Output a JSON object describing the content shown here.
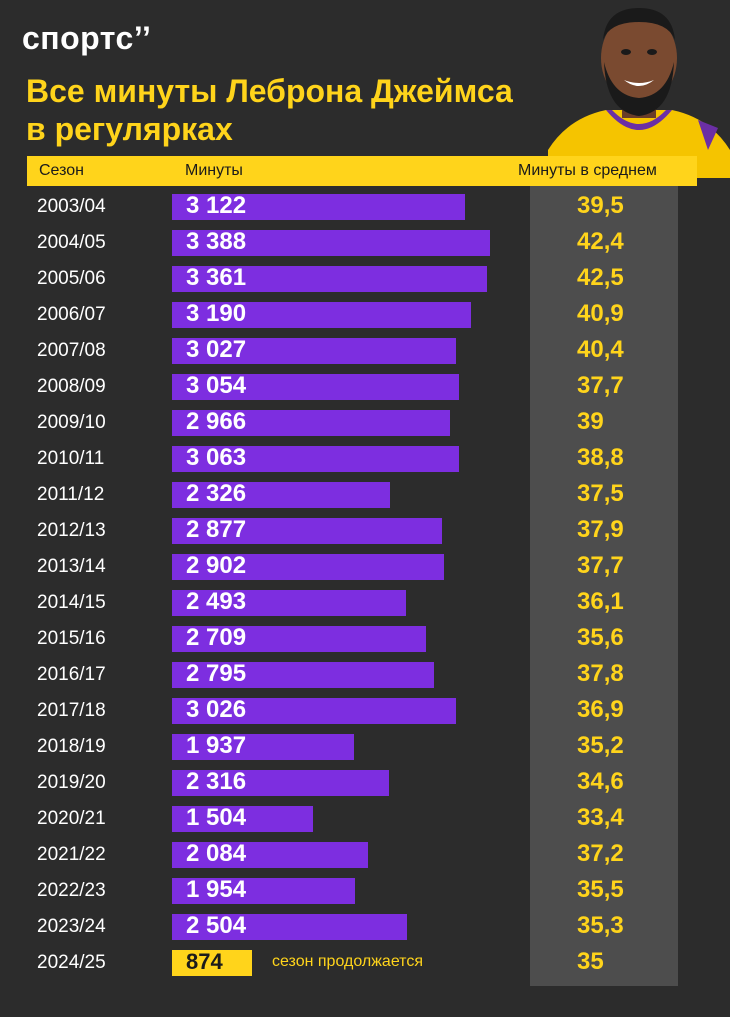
{
  "brand": {
    "logo_text": "спортс’’"
  },
  "title_lines": [
    "Все минуты Леброна Джеймса",
    "в регулярках"
  ],
  "colors": {
    "background": "#2c2c2c",
    "accent_yellow": "#ffd41b",
    "bar_purple": "#7d2ee0",
    "avg_column": "#4d4d4d"
  },
  "chart_data": {
    "type": "bar",
    "columns": [
      "Сезон",
      "Минуты",
      "Минуты в среднем"
    ],
    "categories": [
      "2003/04",
      "2004/05",
      "2005/06",
      "2006/07",
      "2007/08",
      "2008/09",
      "2009/10",
      "2010/11",
      "2011/12",
      "2012/13",
      "2013/14",
      "2014/15",
      "2015/16",
      "2016/17",
      "2017/18",
      "2018/19",
      "2019/20",
      "2020/21",
      "2021/22",
      "2022/23",
      "2023/24",
      "2024/25"
    ],
    "values": [
      3122,
      3388,
      3361,
      3190,
      3027,
      3054,
      2966,
      3063,
      2326,
      2877,
      2902,
      2493,
      2709,
      2795,
      3026,
      1937,
      2316,
      1504,
      2084,
      1954,
      2504,
      874
    ],
    "minutes_labels": [
      "3 122",
      "3 388",
      "3 361",
      "3 190",
      "3 027",
      "3 054",
      "2 966",
      "3 063",
      "2 326",
      "2 877",
      "2 902",
      "2 493",
      "2 709",
      "2 795",
      "3 026",
      "1 937",
      "2 316",
      "1 504",
      "2 084",
      "1 954",
      "2 504",
      "874"
    ],
    "avg_minutes": [
      "39,5",
      "42,4",
      "42,5",
      "40,9",
      "40,4",
      "37,7",
      "39",
      "38,8",
      "37,5",
      "37,9",
      "37,7",
      "36,1",
      "35,6",
      "37,8",
      "36,9",
      "35,2",
      "34,6",
      "33,4",
      "37,2",
      "35,5",
      "35,3",
      "35"
    ],
    "current_season_note": "сезон продолжается",
    "xlim": [
      0,
      3388
    ]
  }
}
